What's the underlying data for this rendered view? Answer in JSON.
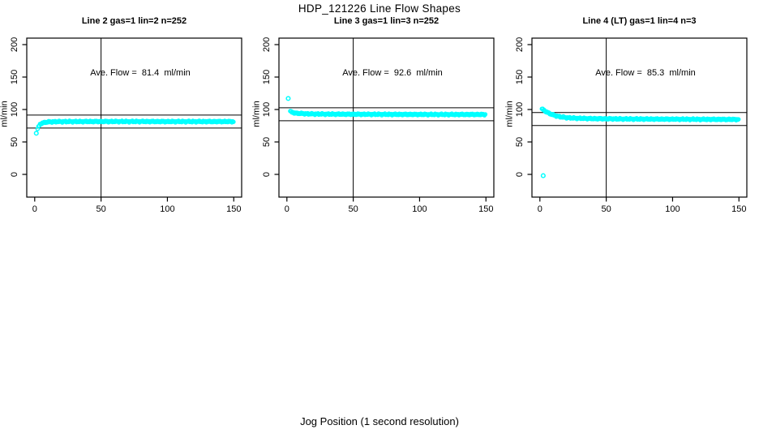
{
  "page": {
    "title": "HDP_121226  Line Flow Shapes",
    "xlabel": "Jog Position (1 second resolution)"
  },
  "colors": {
    "points": "#00FFFF",
    "axis": "#000000",
    "background": "#FFFFFF"
  },
  "chart_data": [
    {
      "type": "scatter",
      "panel_title": "Line 2 gas=1 lin=2 n=252",
      "annotation": "Ave. Flow =  81.4  ml/min",
      "ave_flow_ml_min": 81.4,
      "n": 252,
      "ylabel": "ml/min",
      "x_ticks": [
        0,
        50,
        100,
        150
      ],
      "y_ticks": [
        0,
        50,
        100,
        150,
        200
      ],
      "xlim": [
        -6,
        156
      ],
      "ylim": [
        -35,
        210
      ],
      "grid": "off",
      "legend": "none",
      "ref_lines": [
        91.4,
        71.4
      ],
      "vline_x": 50,
      "solo_points": [
        [
          1.2,
          63.4
        ]
      ],
      "series_keypoints": [
        [
          2.2,
          70.0
        ],
        [
          3,
          74.0
        ],
        [
          4,
          77.0
        ],
        [
          5,
          78.5
        ],
        [
          6,
          79.4
        ],
        [
          8,
          80.3
        ],
        [
          10,
          80.8
        ],
        [
          15,
          81.2
        ],
        [
          20,
          81.3
        ],
        [
          30,
          81.4
        ],
        [
          50,
          81.5
        ],
        [
          80,
          81.5
        ],
        [
          100,
          81.4
        ],
        [
          120,
          81.4
        ],
        [
          150,
          81.4
        ]
      ]
    },
    {
      "type": "scatter",
      "panel_title": "Line 3 gas=1 lin=3 n=252",
      "annotation": "Ave. Flow =  92.6  ml/min",
      "ave_flow_ml_min": 92.6,
      "n": 252,
      "ylabel": "ml/min",
      "x_ticks": [
        0,
        50,
        100,
        150
      ],
      "y_ticks": [
        0,
        50,
        100,
        150,
        200
      ],
      "xlim": [
        -6,
        156
      ],
      "ylim": [
        -35,
        210
      ],
      "grid": "off",
      "legend": "none",
      "ref_lines": [
        102.6,
        82.6
      ],
      "vline_x": 50,
      "solo_points": [
        [
          1.0,
          117.0
        ]
      ],
      "series_keypoints": [
        [
          2.5,
          97.5
        ],
        [
          3,
          96.5
        ],
        [
          4,
          95.5
        ],
        [
          5,
          95.0
        ],
        [
          6,
          94.6
        ],
        [
          8,
          94.2
        ],
        [
          10,
          93.9
        ],
        [
          15,
          93.4
        ],
        [
          20,
          93.1
        ],
        [
          30,
          92.9
        ],
        [
          40,
          92.8
        ],
        [
          60,
          92.6
        ],
        [
          80,
          92.5
        ],
        [
          100,
          92.4
        ],
        [
          120,
          92.35
        ],
        [
          150,
          92.3
        ]
      ]
    },
    {
      "type": "scatter",
      "panel_title": "Line 4 (LT) gas=1 lin=4 n=3",
      "annotation": "Ave. Flow =  85.3  ml/min",
      "ave_flow_ml_min": 85.3,
      "n": 3,
      "ylabel": "ml/min",
      "x_ticks": [
        0,
        50,
        100,
        150
      ],
      "y_ticks": [
        0,
        50,
        100,
        150,
        200
      ],
      "xlim": [
        -6,
        156
      ],
      "ylim": [
        -35,
        210
      ],
      "grid": "off",
      "legend": "none",
      "ref_lines": [
        95.3,
        75.3
      ],
      "vline_x": 50,
      "solo_points": [
        [
          2.5,
          -2.0
        ]
      ],
      "series_keypoints": [
        [
          1.5,
          101.0
        ],
        [
          2.5,
          99.5
        ],
        [
          4,
          97.5
        ],
        [
          5,
          96.3
        ],
        [
          6,
          95.2
        ],
        [
          8,
          93.2
        ],
        [
          10,
          91.6
        ],
        [
          12,
          90.3
        ],
        [
          15,
          88.9
        ],
        [
          18,
          88.0
        ],
        [
          20,
          87.5
        ],
        [
          25,
          86.8
        ],
        [
          30,
          86.4
        ],
        [
          40,
          85.9
        ],
        [
          50,
          85.7
        ],
        [
          60,
          85.5
        ],
        [
          80,
          85.3
        ],
        [
          100,
          85.1
        ],
        [
          120,
          84.9
        ],
        [
          150,
          84.7
        ]
      ]
    }
  ]
}
